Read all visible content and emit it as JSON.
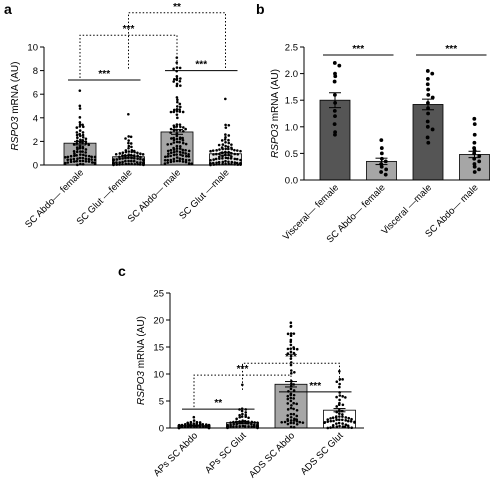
{
  "chart_data": [
    {
      "panel": "a",
      "type": "bar",
      "ylabel_italic": "RSPO3",
      "ylabel_rest": " mRNA (AU)",
      "ylim": [
        0,
        10
      ],
      "yticks": [
        0,
        2,
        4,
        6,
        8,
        10
      ],
      "categories": [
        "SC Abdo— female",
        "SC Glut —female",
        "SC Abdo— male",
        "SC Glut —male"
      ],
      "values": [
        1.85,
        0.7,
        2.8,
        0.95
      ],
      "errors": [
        0.15,
        0.1,
        0.2,
        0.12
      ],
      "bar_colors": [
        "#a6a6a6",
        "#a6a6a6",
        "#a6a6a6",
        "#e6e6e6"
      ],
      "point_counts": [
        80,
        80,
        110,
        80
      ],
      "point_max": [
        6.3,
        4.3,
        9.1,
        5.6
      ],
      "significance": [
        {
          "from": 0,
          "to": 1,
          "label": "***",
          "style": "solid",
          "y": 7.2
        },
        {
          "from": 2,
          "to": 3,
          "label": "***",
          "style": "solid",
          "y": 8.0
        },
        {
          "from": 0,
          "to": 2,
          "label": "***",
          "style": "dotted",
          "y": 11.0
        },
        {
          "from": 1,
          "to": 3,
          "label": "**",
          "style": "dotted",
          "y": 12.9
        }
      ]
    },
    {
      "panel": "b",
      "type": "bar",
      "ylabel_italic": "RSPO3",
      "ylabel_rest": " mRNA (AU)",
      "ylim": [
        0,
        2.5
      ],
      "yticks": [
        0.0,
        0.5,
        1.0,
        1.5,
        2.0,
        2.5
      ],
      "categories": [
        "Visceral— female",
        "SC Abdo— female",
        "Visceral —male",
        "SC Abdo— male"
      ],
      "values": [
        1.5,
        0.35,
        1.42,
        0.48
      ],
      "errors": [
        0.14,
        0.06,
        0.1,
        0.06
      ],
      "bar_colors": [
        "#555555",
        "#a6a6a6",
        "#555555",
        "#a6a6a6"
      ],
      "points": [
        [
          2.2,
          2.15,
          2.0,
          1.95,
          1.85,
          1.6,
          1.45,
          1.3,
          1.2,
          1.05,
          0.9,
          0.85
        ],
        [
          0.75,
          0.6,
          0.5,
          0.4,
          0.35,
          0.3,
          0.25,
          0.2,
          0.15,
          0.1
        ],
        [
          2.05,
          2.0,
          1.9,
          1.8,
          1.7,
          1.6,
          1.55,
          1.45,
          1.35,
          1.25,
          1.1,
          1.0,
          0.95,
          0.8,
          0.7
        ],
        [
          1.15,
          1.05,
          0.85,
          0.7,
          0.6,
          0.55,
          0.5,
          0.45,
          0.4,
          0.35,
          0.3,
          0.25,
          0.2,
          0.15
        ]
      ],
      "significance": [
        {
          "from": 0,
          "to": 1,
          "label": "***",
          "style": "solid",
          "y": 2.35
        },
        {
          "from": 2,
          "to": 3,
          "label": "***",
          "style": "solid",
          "y": 2.35
        }
      ]
    },
    {
      "panel": "c",
      "type": "bar",
      "ylabel_italic": "RSPO3",
      "ylabel_rest": " mRNA (AU)",
      "ylim": [
        0,
        25
      ],
      "yticks": [
        0,
        5,
        10,
        15,
        20,
        25
      ],
      "categories": [
        "APs SC Abdo",
        "APs SC Glut",
        "ADS SC Abdo",
        "ADS SC Glut"
      ],
      "values": [
        0.45,
        1.0,
        8.1,
        3.3
      ],
      "errors": [
        0.1,
        0.2,
        0.5,
        0.3
      ],
      "bar_colors": [
        "#555555",
        "#a6a6a6",
        "#a6a6a6",
        "#ffffff"
      ],
      "point_counts": [
        60,
        60,
        70,
        60
      ],
      "point_max": [
        2.0,
        8.0,
        19.5,
        10.5
      ],
      "significance": [
        {
          "from": 0,
          "to": 1,
          "label": "**",
          "style": "solid",
          "y": 3.5
        },
        {
          "from": 2,
          "to": 3,
          "label": "***",
          "style": "solid",
          "y": 6.7
        },
        {
          "from": 0,
          "to": 2,
          "label": "***",
          "style": "dotted",
          "y": 9.8
        },
        {
          "from": 1,
          "to": 3,
          "label": "***",
          "style": "dotted",
          "y": 12.0
        }
      ]
    }
  ]
}
